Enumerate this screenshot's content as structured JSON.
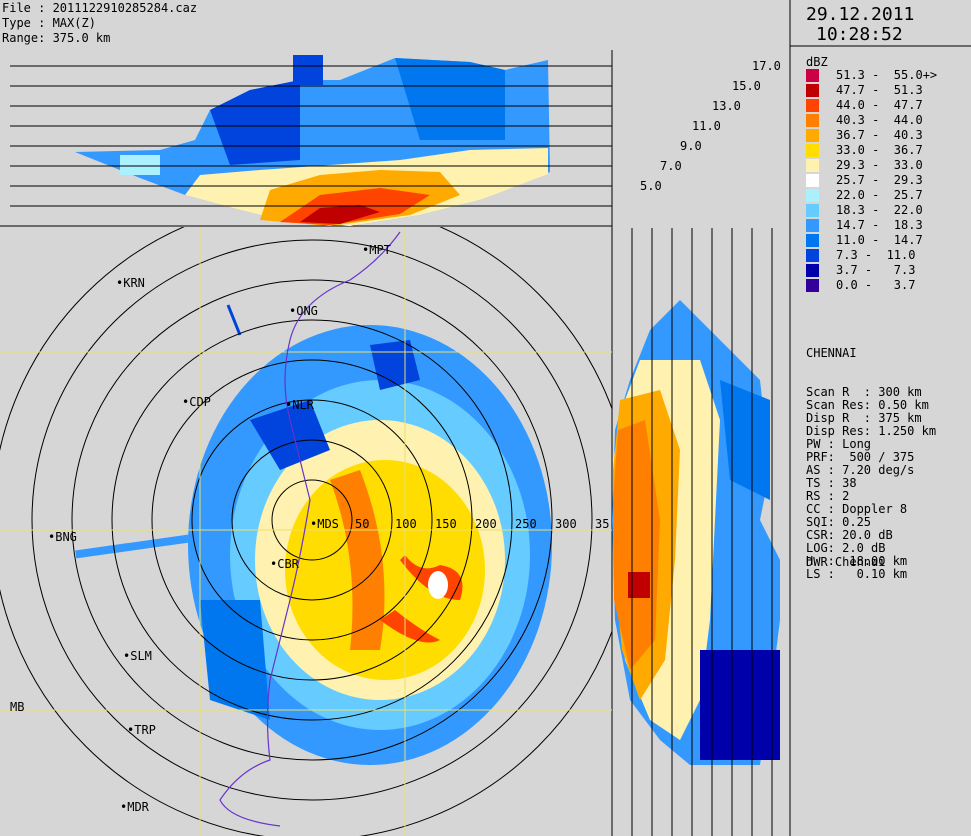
{
  "header": {
    "file_line": "File : 2011122910285284.caz",
    "type_line": "Type : MAX(Z)",
    "range_line": "Range: 375.0 km"
  },
  "timestamp": {
    "date": "29.12.2011",
    "time": "10:28:52"
  },
  "legend": {
    "unit": "dBZ",
    "bins": [
      {
        "label": "51.3 -  55.0+>",
        "color": "#cc0044"
      },
      {
        "label": "47.7 -  51.3",
        "color": "#c00000"
      },
      {
        "label": "44.0 -  47.7",
        "color": "#ff4400"
      },
      {
        "label": "40.3 -  44.0",
        "color": "#ff8000"
      },
      {
        "label": "36.7 -  40.3",
        "color": "#ffaa00"
      },
      {
        "label": "33.0 -  36.7",
        "color": "#ffdd00"
      },
      {
        "label": "29.3 -  33.0",
        "color": "#fff2b0"
      },
      {
        "label": "25.7 -  29.3",
        "color": "#ffffff"
      },
      {
        "label": "22.0 -  25.7",
        "color": "#aaf0ff"
      },
      {
        "label": "18.3 -  22.0",
        "color": "#66ccff"
      },
      {
        "label": "14.7 -  18.3",
        "color": "#3399ff"
      },
      {
        "label": "11.0 -  14.7",
        "color": "#0077ee"
      },
      {
        "label": "7.3 -  11.0",
        "color": "#0044dd"
      },
      {
        "label": "3.7 -   7.3",
        "color": "#0000aa"
      },
      {
        "label": "0.0 -   3.7",
        "color": "#330099"
      }
    ]
  },
  "radar_info": {
    "station": "CHENNAI",
    "lines": [
      "Scan R  : 300 km",
      "Scan Res: 0.50 km",
      "Disp R  : 375 km",
      "Disp Res: 1.250 km",
      "PW : Long",
      "PRF:  500 / 375",
      "AS : 7.20 deg/s",
      "TS : 38",
      "RS : 2",
      "CC : Doppler 8",
      "SQI: 0.25",
      "CSR: 20.0 dB",
      "LOG: 2.0 dB",
      "H  :  18.00 km",
      "LS :   0.10 km"
    ],
    "site_name": "DWR Chennai"
  },
  "altitude_labels": [
    "17.0",
    "15.0",
    "13.0",
    "11.0",
    "9.0",
    "7.0",
    "5.0"
  ],
  "range_ring_labels": [
    "50",
    "100",
    "150",
    "200",
    "250",
    "300",
    "35"
  ],
  "places": [
    {
      "name": "MPT"
    },
    {
      "name": "KRN"
    },
    {
      "name": "ONG"
    },
    {
      "name": "CDP"
    },
    {
      "name": "NLR"
    },
    {
      "name": "BNG"
    },
    {
      "name": "MDS"
    },
    {
      "name": "CBR"
    },
    {
      "name": "SLM"
    },
    {
      "name": "TRP"
    },
    {
      "name": "MDR"
    },
    {
      "name": "MB"
    }
  ]
}
